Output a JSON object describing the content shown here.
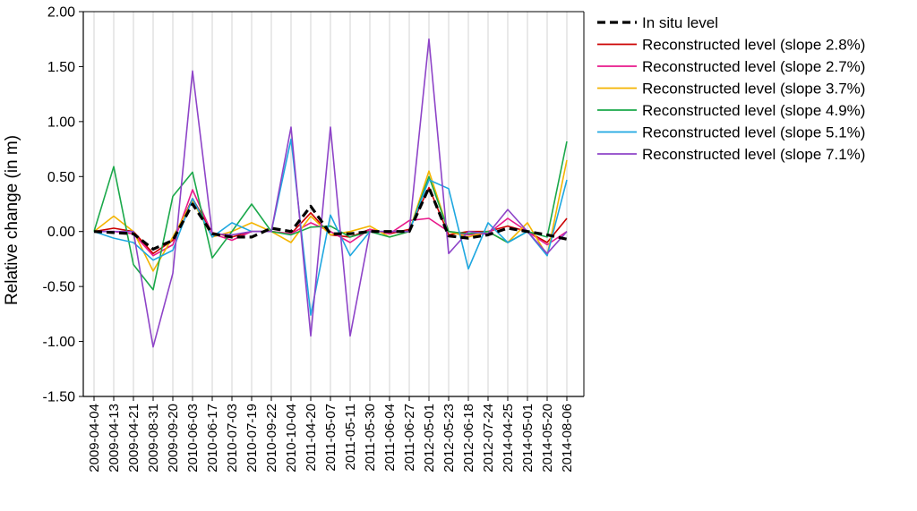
{
  "chart_data": {
    "type": "line",
    "title": "",
    "xlabel": "",
    "ylabel": "Relative change (in m)",
    "ylim": [
      -1.5,
      2.0
    ],
    "yticks": [
      -1.5,
      -1.0,
      -0.5,
      0.0,
      0.5,
      1.0,
      1.5,
      2.0
    ],
    "ytick_labels": [
      "-1.50",
      "-1.00",
      "-0.50",
      "0.00",
      "0.50",
      "1.00",
      "1.50",
      "2.00"
    ],
    "grid": "vertical",
    "legend_position": "right",
    "categories": [
      "2009-04-04",
      "2009-04-13",
      "2009-04-21",
      "2009-08-31",
      "2009-09-20",
      "2010-06-03",
      "2010-06-17",
      "2010-07-03",
      "2010-07-19",
      "2010-09-22",
      "2010-10-04",
      "2011-04-20",
      "2011-05-07",
      "2011-05-11",
      "2011-05-30",
      "2011-06-04",
      "2011-06-27",
      "2012-05-01",
      "2012-05-23",
      "2012-06-18",
      "2012-07-24",
      "2014-04-25",
      "2014-05-01",
      "2014-05-20",
      "2014-08-06"
    ],
    "series": [
      {
        "name": "Reconstructed level (slope 2.8%)",
        "color": "#cc0000",
        "style": "solid",
        "values": [
          0.0,
          0.03,
          0.0,
          -0.2,
          -0.08,
          0.3,
          -0.01,
          -0.05,
          0.0,
          0.0,
          -0.02,
          0.17,
          -0.03,
          -0.05,
          0.02,
          -0.02,
          0.02,
          0.4,
          -0.03,
          0.0,
          0.0,
          0.05,
          0.0,
          -0.1,
          0.12
        ]
      },
      {
        "name": "Reconstructed level (slope 2.7%)",
        "color": "#e8198b",
        "style": "solid",
        "values": [
          0.0,
          0.0,
          -0.02,
          -0.22,
          -0.12,
          0.38,
          -0.02,
          -0.08,
          0.0,
          0.0,
          -0.02,
          0.08,
          0.0,
          -0.1,
          0.02,
          -0.02,
          0.1,
          0.12,
          0.0,
          -0.03,
          -0.02,
          0.12,
          0.0,
          -0.12,
          0.0
        ]
      },
      {
        "name": "Reconstructed level (slope 3.7%)",
        "color": "#f4b400",
        "style": "solid",
        "values": [
          0.0,
          0.14,
          0.0,
          -0.36,
          -0.05,
          0.28,
          -0.05,
          0.0,
          0.08,
          0.0,
          -0.1,
          0.14,
          -0.03,
          0.0,
          0.05,
          -0.05,
          0.0,
          0.55,
          0.0,
          -0.05,
          0.0,
          -0.1,
          0.08,
          -0.22,
          0.65
        ]
      },
      {
        "name": "Reconstructed level (slope 4.9%)",
        "color": "#1aa84a",
        "style": "solid",
        "values": [
          0.0,
          0.59,
          -0.3,
          -0.53,
          0.32,
          0.54,
          -0.24,
          0.0,
          0.25,
          0.0,
          -0.03,
          0.04,
          0.05,
          -0.05,
          0.0,
          -0.05,
          0.0,
          0.5,
          0.0,
          -0.02,
          0.0,
          -0.1,
          0.0,
          -0.05,
          0.82
        ]
      },
      {
        "name": "Reconstructed level (slope 5.1%)",
        "color": "#1ea7e0",
        "style": "solid",
        "values": [
          0.0,
          -0.06,
          -0.1,
          -0.26,
          -0.17,
          0.3,
          -0.05,
          0.08,
          0.0,
          0.0,
          0.84,
          -0.76,
          0.15,
          -0.22,
          0.0,
          0.0,
          0.0,
          0.47,
          0.39,
          -0.34,
          0.08,
          -0.1,
          0.0,
          -0.22,
          0.47
        ]
      },
      {
        "name": "Reconstructed level (slope 7.1%)",
        "color": "#8e44c8",
        "style": "solid",
        "values": [
          0.0,
          0.0,
          0.0,
          -1.05,
          -0.38,
          1.46,
          -0.02,
          -0.03,
          0.0,
          0.0,
          0.95,
          -0.95,
          0.95,
          -0.95,
          0.0,
          0.0,
          0.0,
          1.75,
          -0.2,
          0.0,
          -0.02,
          0.2,
          0.0,
          -0.2,
          0.0
        ]
      },
      {
        "name": "In situ level",
        "color": "#000000",
        "style": "dashed",
        "values": [
          0.0,
          -0.01,
          -0.02,
          -0.16,
          -0.08,
          0.25,
          -0.02,
          -0.05,
          -0.05,
          0.03,
          0.0,
          0.23,
          -0.02,
          -0.02,
          0.0,
          0.0,
          0.0,
          0.4,
          -0.04,
          -0.06,
          -0.03,
          0.03,
          0.0,
          -0.03,
          -0.07
        ]
      }
    ],
    "legend_order": [
      "In situ level",
      "Reconstructed level (slope 2.8%)",
      "Reconstructed level (slope 2.7%)",
      "Reconstructed level (slope 3.7%)",
      "Reconstructed level (slope 4.9%)",
      "Reconstructed level (slope 5.1%)",
      "Reconstructed level (slope 7.1%)"
    ]
  }
}
